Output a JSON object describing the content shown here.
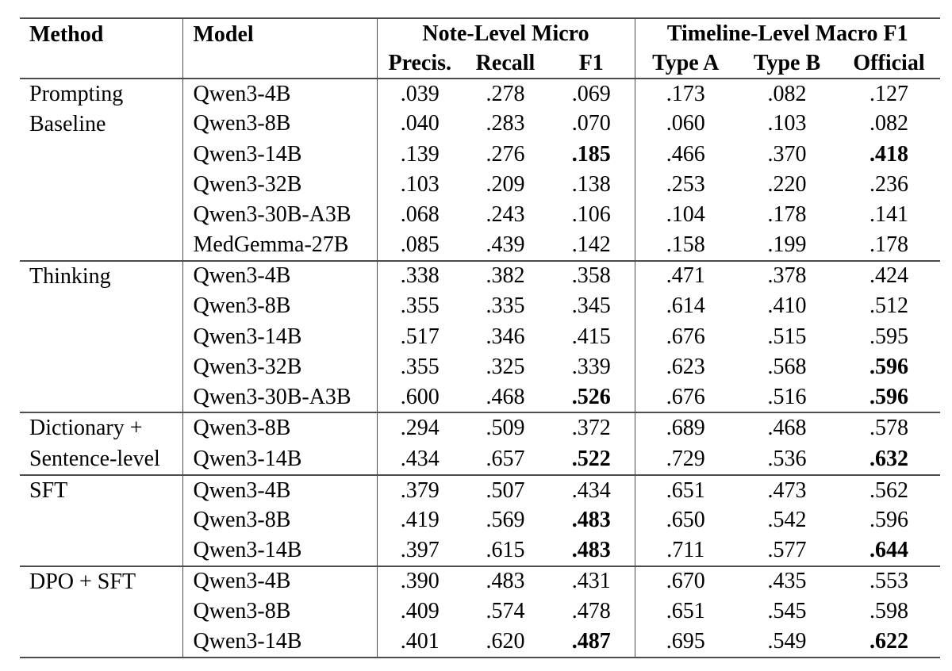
{
  "table": {
    "header": {
      "method": "Method",
      "model": "Model",
      "note_group": "Note-Level Micro",
      "timeline_group": "Timeline-Level Macro F1",
      "subcolumns": [
        "Precis.",
        "Recall",
        "F1",
        "Type A",
        "Type B",
        "Official"
      ]
    },
    "sections": [
      {
        "method": "Prompting\nBaseline",
        "rows": [
          {
            "model": "Qwen3-4B",
            "values": [
              ".039",
              ".278",
              ".069",
              ".173",
              ".082",
              ".127"
            ],
            "bold": []
          },
          {
            "model": "Qwen3-8B",
            "values": [
              ".040",
              ".283",
              ".070",
              ".060",
              ".103",
              ".082"
            ],
            "bold": []
          },
          {
            "model": "Qwen3-14B",
            "values": [
              ".139",
              ".276",
              ".185",
              ".466",
              ".370",
              ".418"
            ],
            "bold": [
              2,
              5
            ]
          },
          {
            "model": "Qwen3-32B",
            "values": [
              ".103",
              ".209",
              ".138",
              ".253",
              ".220",
              ".236"
            ],
            "bold": []
          },
          {
            "model": "Qwen3-30B-A3B",
            "values": [
              ".068",
              ".243",
              ".106",
              ".104",
              ".178",
              ".141"
            ],
            "bold": []
          },
          {
            "model": "MedGemma-27B",
            "values": [
              ".085",
              ".439",
              ".142",
              ".158",
              ".199",
              ".178"
            ],
            "bold": []
          }
        ]
      },
      {
        "method": "Thinking",
        "rows": [
          {
            "model": "Qwen3-4B",
            "values": [
              ".338",
              ".382",
              ".358",
              ".471",
              ".378",
              ".424"
            ],
            "bold": []
          },
          {
            "model": "Qwen3-8B",
            "values": [
              ".355",
              ".335",
              ".345",
              ".614",
              ".410",
              ".512"
            ],
            "bold": []
          },
          {
            "model": "Qwen3-14B",
            "values": [
              ".517",
              ".346",
              ".415",
              ".676",
              ".515",
              ".595"
            ],
            "bold": []
          },
          {
            "model": "Qwen3-32B",
            "values": [
              ".355",
              ".325",
              ".339",
              ".623",
              ".568",
              ".596"
            ],
            "bold": [
              5
            ]
          },
          {
            "model": "Qwen3-30B-A3B",
            "values": [
              ".600",
              ".468",
              ".526",
              ".676",
              ".516",
              ".596"
            ],
            "bold": [
              2,
              5
            ]
          }
        ]
      },
      {
        "method": "Dictionary +\nSentence-level",
        "rows": [
          {
            "model": "Qwen3-8B",
            "values": [
              ".294",
              ".509",
              ".372",
              ".689",
              ".468",
              ".578"
            ],
            "bold": []
          },
          {
            "model": "Qwen3-14B",
            "values": [
              ".434",
              ".657",
              ".522",
              ".729",
              ".536",
              ".632"
            ],
            "bold": [
              2,
              5
            ]
          }
        ]
      },
      {
        "method": "SFT",
        "rows": [
          {
            "model": "Qwen3-4B",
            "values": [
              ".379",
              ".507",
              ".434",
              ".651",
              ".473",
              ".562"
            ],
            "bold": []
          },
          {
            "model": "Qwen3-8B",
            "values": [
              ".419",
              ".569",
              ".483",
              ".650",
              ".542",
              ".596"
            ],
            "bold": [
              2
            ]
          },
          {
            "model": "Qwen3-14B",
            "values": [
              ".397",
              ".615",
              ".483",
              ".711",
              ".577",
              ".644"
            ],
            "bold": [
              2,
              5
            ]
          }
        ]
      },
      {
        "method": "DPO + SFT",
        "rows": [
          {
            "model": "Qwen3-4B",
            "values": [
              ".390",
              ".483",
              ".431",
              ".670",
              ".435",
              ".553"
            ],
            "bold": []
          },
          {
            "model": "Qwen3-8B",
            "values": [
              ".409",
              ".574",
              ".478",
              ".651",
              ".545",
              ".598"
            ],
            "bold": []
          },
          {
            "model": "Qwen3-14B",
            "values": [
              ".401",
              ".620",
              ".487",
              ".695",
              ".549",
              ".622"
            ],
            "bold": [
              2,
              5
            ]
          }
        ]
      }
    ]
  }
}
